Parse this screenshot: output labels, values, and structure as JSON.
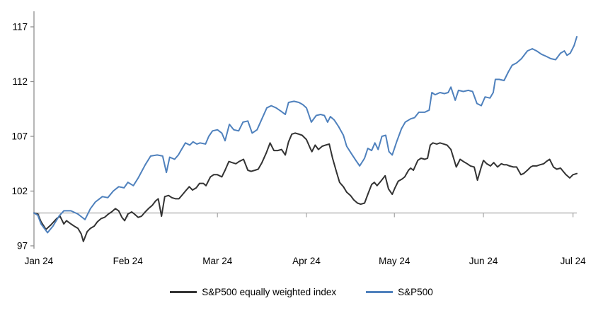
{
  "chart_data": {
    "type": "line",
    "title": "",
    "xlabel": "",
    "ylabel": "",
    "grid": "off",
    "baseline_value": 100,
    "legend_position": "bottom",
    "colors": {
      "axis": "#8f8f8f",
      "baseline": "#a6a6a6",
      "tick_text": "#000000"
    },
    "y_axis": {
      "min": 97,
      "max": 117,
      "ticks": [
        117,
        112,
        107,
        102,
        97
      ]
    },
    "x_axis": {
      "labels": [
        "Jan 24",
        "Feb 24",
        "Mar 24",
        "Apr 24",
        "May 24",
        "Jun 24",
        "Jul 24"
      ],
      "tick_positions": [
        0.009,
        0.173,
        0.338,
        0.502,
        0.664,
        0.828,
        0.993
      ]
    },
    "series": [
      {
        "name": "S&P500 equally weighted index",
        "color": "#333333",
        "points": [
          [
            0,
            100
          ],
          [
            0.007,
            99.9
          ],
          [
            0.013,
            99.2
          ],
          [
            0.022,
            98.5
          ],
          [
            0.031,
            98.9
          ],
          [
            0.042,
            99.5
          ],
          [
            0.048,
            99.7
          ],
          [
            0.055,
            99
          ],
          [
            0.06,
            99.3
          ],
          [
            0.068,
            99
          ],
          [
            0.074,
            98.8
          ],
          [
            0.081,
            98.6
          ],
          [
            0.087,
            98.1
          ],
          [
            0.091,
            97.4
          ],
          [
            0.098,
            98.3
          ],
          [
            0.104,
            98.6
          ],
          [
            0.111,
            98.8
          ],
          [
            0.117,
            99.2
          ],
          [
            0.124,
            99.5
          ],
          [
            0.13,
            99.6
          ],
          [
            0.137,
            99.9
          ],
          [
            0.143,
            100.1
          ],
          [
            0.15,
            100.4
          ],
          [
            0.156,
            100.2
          ],
          [
            0.162,
            99.6
          ],
          [
            0.167,
            99.3
          ],
          [
            0.173,
            99.9
          ],
          [
            0.18,
            100.1
          ],
          [
            0.185,
            99.9
          ],
          [
            0.192,
            99.6
          ],
          [
            0.198,
            99.7
          ],
          [
            0.205,
            100.1
          ],
          [
            0.211,
            100.4
          ],
          [
            0.218,
            100.7
          ],
          [
            0.224,
            101.1
          ],
          [
            0.229,
            101.3
          ],
          [
            0.235,
            99.7
          ],
          [
            0.241,
            101.5
          ],
          [
            0.248,
            101.6
          ],
          [
            0.254,
            101.4
          ],
          [
            0.261,
            101.3
          ],
          [
            0.267,
            101.3
          ],
          [
            0.274,
            101.7
          ],
          [
            0.279,
            102
          ],
          [
            0.286,
            102.4
          ],
          [
            0.292,
            102.1
          ],
          [
            0.299,
            102.3
          ],
          [
            0.305,
            102.7
          ],
          [
            0.312,
            102.7
          ],
          [
            0.317,
            102.5
          ],
          [
            0.325,
            103.3
          ],
          [
            0.331,
            103.5
          ],
          [
            0.338,
            103.5
          ],
          [
            0.346,
            103.3
          ],
          [
            0.352,
            103.9
          ],
          [
            0.359,
            104.7
          ],
          [
            0.365,
            104.6
          ],
          [
            0.372,
            104.5
          ],
          [
            0.378,
            104.7
          ],
          [
            0.386,
            104.9
          ],
          [
            0.394,
            103.9
          ],
          [
            0.4,
            103.8
          ],
          [
            0.407,
            103.9
          ],
          [
            0.413,
            104
          ],
          [
            0.42,
            104.6
          ],
          [
            0.428,
            105.5
          ],
          [
            0.435,
            106.4
          ],
          [
            0.442,
            105.7
          ],
          [
            0.449,
            105.7
          ],
          [
            0.456,
            105.8
          ],
          [
            0.463,
            105.3
          ],
          [
            0.469,
            106.5
          ],
          [
            0.475,
            107.2
          ],
          [
            0.481,
            107.3
          ],
          [
            0.488,
            107.2
          ],
          [
            0.494,
            107.1
          ],
          [
            0.502,
            106.7
          ],
          [
            0.509,
            105.9
          ],
          [
            0.512,
            105.6
          ],
          [
            0.518,
            106.2
          ],
          [
            0.524,
            105.8
          ],
          [
            0.531,
            106.1
          ],
          [
            0.537,
            106.2
          ],
          [
            0.544,
            106.3
          ],
          [
            0.55,
            105
          ],
          [
            0.557,
            103.8
          ],
          [
            0.563,
            102.8
          ],
          [
            0.57,
            102.4
          ],
          [
            0.576,
            101.9
          ],
          [
            0.583,
            101.6
          ],
          [
            0.589,
            101.2
          ],
          [
            0.596,
            100.9
          ],
          [
            0.602,
            100.8
          ],
          [
            0.609,
            100.9
          ],
          [
            0.615,
            101.7
          ],
          [
            0.622,
            102.6
          ],
          [
            0.627,
            102.8
          ],
          [
            0.632,
            102.5
          ],
          [
            0.639,
            102.9
          ],
          [
            0.647,
            103.4
          ],
          [
            0.653,
            102.2
          ],
          [
            0.66,
            101.7
          ],
          [
            0.665,
            102.3
          ],
          [
            0.671,
            102.9
          ],
          [
            0.678,
            103.1
          ],
          [
            0.683,
            103.3
          ],
          [
            0.69,
            103.9
          ],
          [
            0.694,
            104.1
          ],
          [
            0.699,
            103.9
          ],
          [
            0.707,
            104.8
          ],
          [
            0.713,
            105
          ],
          [
            0.72,
            104.9
          ],
          [
            0.725,
            105
          ],
          [
            0.73,
            106.2
          ],
          [
            0.735,
            106.4
          ],
          [
            0.742,
            106.3
          ],
          [
            0.748,
            106.4
          ],
          [
            0.755,
            106.3
          ],
          [
            0.761,
            106.2
          ],
          [
            0.768,
            105.8
          ],
          [
            0.773,
            105
          ],
          [
            0.778,
            104.2
          ],
          [
            0.785,
            104.9
          ],
          [
            0.791,
            104.7
          ],
          [
            0.798,
            104.5
          ],
          [
            0.804,
            104.3
          ],
          [
            0.811,
            104.2
          ],
          [
            0.817,
            103
          ],
          [
            0.824,
            104.2
          ],
          [
            0.828,
            104.8
          ],
          [
            0.834,
            104.5
          ],
          [
            0.841,
            104.3
          ],
          [
            0.847,
            104.6
          ],
          [
            0.854,
            104.2
          ],
          [
            0.861,
            104.5
          ],
          [
            0.866,
            104.4
          ],
          [
            0.871,
            104.4
          ],
          [
            0.876,
            104.3
          ],
          [
            0.883,
            104.2
          ],
          [
            0.889,
            104.2
          ],
          [
            0.897,
            103.5
          ],
          [
            0.902,
            103.6
          ],
          [
            0.909,
            103.9
          ],
          [
            0.915,
            104.2
          ],
          [
            0.919,
            104.3
          ],
          [
            0.926,
            104.3
          ],
          [
            0.932,
            104.4
          ],
          [
            0.939,
            104.5
          ],
          [
            0.944,
            104.7
          ],
          [
            0.95,
            104.9
          ],
          [
            0.957,
            104.2
          ],
          [
            0.963,
            104
          ],
          [
            0.97,
            104.1
          ],
          [
            0.975,
            103.8
          ],
          [
            0.98,
            103.5
          ],
          [
            0.987,
            103.2
          ],
          [
            0.993,
            103.5
          ],
          [
            1,
            103.6
          ]
        ]
      },
      {
        "name": "S&P500",
        "color": "#4f81bd",
        "points": [
          [
            0,
            100
          ],
          [
            0.007,
            99.8
          ],
          [
            0.013,
            99
          ],
          [
            0.025,
            98.2
          ],
          [
            0.035,
            98.8
          ],
          [
            0.046,
            99.7
          ],
          [
            0.055,
            100.2
          ],
          [
            0.068,
            100.2
          ],
          [
            0.081,
            99.9
          ],
          [
            0.094,
            99.4
          ],
          [
            0.104,
            100.4
          ],
          [
            0.113,
            101
          ],
          [
            0.126,
            101.5
          ],
          [
            0.136,
            101.4
          ],
          [
            0.146,
            102
          ],
          [
            0.156,
            102.4
          ],
          [
            0.166,
            102.3
          ],
          [
            0.173,
            102.8
          ],
          [
            0.183,
            102.5
          ],
          [
            0.192,
            103.2
          ],
          [
            0.205,
            104.4
          ],
          [
            0.215,
            105.2
          ],
          [
            0.227,
            105.3
          ],
          [
            0.237,
            105.2
          ],
          [
            0.244,
            103.7
          ],
          [
            0.25,
            105.1
          ],
          [
            0.259,
            104.9
          ],
          [
            0.266,
            105.3
          ],
          [
            0.273,
            105.9
          ],
          [
            0.279,
            106.4
          ],
          [
            0.287,
            106.2
          ],
          [
            0.293,
            106.5
          ],
          [
            0.3,
            106.3
          ],
          [
            0.306,
            106.4
          ],
          [
            0.316,
            106.3
          ],
          [
            0.322,
            107
          ],
          [
            0.329,
            107.5
          ],
          [
            0.338,
            107.6
          ],
          [
            0.346,
            107.3
          ],
          [
            0.352,
            106.6
          ],
          [
            0.36,
            108.1
          ],
          [
            0.368,
            107.6
          ],
          [
            0.377,
            107.5
          ],
          [
            0.385,
            108.3
          ],
          [
            0.394,
            108.4
          ],
          [
            0.402,
            107.3
          ],
          [
            0.411,
            107.6
          ],
          [
            0.42,
            108.6
          ],
          [
            0.429,
            109.6
          ],
          [
            0.437,
            109.8
          ],
          [
            0.446,
            109.6
          ],
          [
            0.455,
            109.3
          ],
          [
            0.463,
            109
          ],
          [
            0.469,
            110.1
          ],
          [
            0.479,
            110.2
          ],
          [
            0.488,
            110.1
          ],
          [
            0.495,
            109.9
          ],
          [
            0.502,
            109.6
          ],
          [
            0.511,
            108.3
          ],
          [
            0.52,
            108.9
          ],
          [
            0.528,
            109
          ],
          [
            0.535,
            108.9
          ],
          [
            0.541,
            108.3
          ],
          [
            0.546,
            108.8
          ],
          [
            0.553,
            108.5
          ],
          [
            0.561,
            107.9
          ],
          [
            0.57,
            107.1
          ],
          [
            0.576,
            106.1
          ],
          [
            0.585,
            105.4
          ],
          [
            0.593,
            104.8
          ],
          [
            0.6,
            104.3
          ],
          [
            0.609,
            105
          ],
          [
            0.615,
            105.9
          ],
          [
            0.622,
            105.7
          ],
          [
            0.628,
            106.4
          ],
          [
            0.634,
            105.8
          ],
          [
            0.641,
            107
          ],
          [
            0.648,
            107.1
          ],
          [
            0.654,
            105.6
          ],
          [
            0.66,
            105.3
          ],
          [
            0.668,
            106.5
          ],
          [
            0.677,
            107.7
          ],
          [
            0.684,
            108.3
          ],
          [
            0.694,
            108.6
          ],
          [
            0.701,
            108.7
          ],
          [
            0.709,
            109.2
          ],
          [
            0.72,
            109.2
          ],
          [
            0.728,
            109.4
          ],
          [
            0.733,
            111
          ],
          [
            0.739,
            110.8
          ],
          [
            0.748,
            111
          ],
          [
            0.756,
            110.9
          ],
          [
            0.763,
            111
          ],
          [
            0.768,
            111.5
          ],
          [
            0.776,
            110.3
          ],
          [
            0.782,
            111.2
          ],
          [
            0.791,
            111.1
          ],
          [
            0.8,
            111.2
          ],
          [
            0.808,
            111.1
          ],
          [
            0.816,
            110
          ],
          [
            0.824,
            109.8
          ],
          [
            0.831,
            110.6
          ],
          [
            0.84,
            110.5
          ],
          [
            0.846,
            111
          ],
          [
            0.85,
            112.2
          ],
          [
            0.857,
            112.2
          ],
          [
            0.866,
            112.1
          ],
          [
            0.874,
            112.9
          ],
          [
            0.881,
            113.5
          ],
          [
            0.889,
            113.7
          ],
          [
            0.898,
            114.1
          ],
          [
            0.909,
            114.8
          ],
          [
            0.918,
            115
          ],
          [
            0.926,
            114.8
          ],
          [
            0.935,
            114.5
          ],
          [
            0.944,
            114.3
          ],
          [
            0.952,
            114.1
          ],
          [
            0.961,
            114
          ],
          [
            0.97,
            114.6
          ],
          [
            0.977,
            114.8
          ],
          [
            0.982,
            114.4
          ],
          [
            0.988,
            114.6
          ],
          [
            0.995,
            115.3
          ],
          [
            1,
            116.1
          ]
        ]
      }
    ]
  }
}
